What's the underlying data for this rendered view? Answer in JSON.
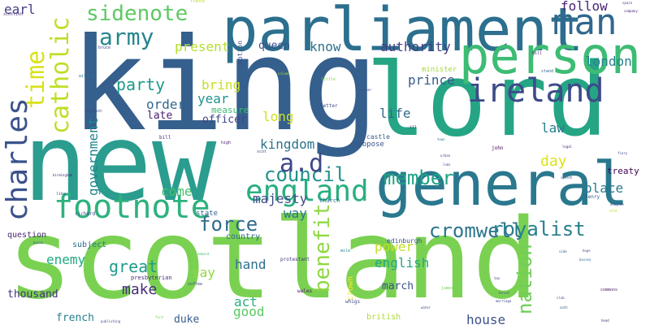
{
  "words": [
    {
      "text": "king",
      "color": "#355f8d"
    },
    {
      "text": "new",
      "color": "#2a9d8f"
    },
    {
      "text": "scotland",
      "color": "#7ad151"
    },
    {
      "text": "lord",
      "color": "#25a584"
    },
    {
      "text": "parliament",
      "color": "#2c6f8e"
    },
    {
      "text": "general",
      "color": "#2a788e"
    },
    {
      "text": "person",
      "color": "#3dbc74"
    },
    {
      "text": "england",
      "color": "#29af7f"
    },
    {
      "text": "charles",
      "color": "#3b528b"
    },
    {
      "text": "ireland",
      "color": "#3e4a89"
    },
    {
      "text": "footnote",
      "color": "#2db27d"
    },
    {
      "text": "man",
      "color": "#31688e"
    },
    {
      "text": "catholic",
      "color": "#bddf26"
    },
    {
      "text": "council",
      "color": "#21918c"
    },
    {
      "text": "member",
      "color": "#20a386"
    },
    {
      "text": "cromwell",
      "color": "#2b758e"
    },
    {
      "text": "sidenote",
      "color": "#5ec962"
    },
    {
      "text": "army",
      "color": "#25858e"
    },
    {
      "text": "time",
      "color": "#d8e219"
    },
    {
      "text": "benefit",
      "color": "#90d743"
    },
    {
      "text": "a.d",
      "color": "#3f4788"
    },
    {
      "text": "force",
      "color": "#2f6c8e"
    },
    {
      "text": "royalist",
      "color": "#277f8e"
    },
    {
      "text": "nation",
      "color": "#6ece58"
    },
    {
      "text": "party",
      "color": "#1f9a8a"
    },
    {
      "text": "great",
      "color": "#1e9b8a"
    },
    {
      "text": "make",
      "color": "#472d7b"
    },
    {
      "text": "government",
      "color": "#24868e"
    },
    {
      "text": "earl",
      "color": "#433e85"
    },
    {
      "text": "follow",
      "color": "#482475"
    },
    {
      "text": "london",
      "color": "#26828e"
    },
    {
      "text": "authority",
      "color": "#433d84"
    },
    {
      "text": "know",
      "color": "#2c728e"
    },
    {
      "text": "present",
      "color": "#b5de2b"
    },
    {
      "text": "queen",
      "color": "#3b518b"
    },
    {
      "text": "prince",
      "color": "#365c8d"
    },
    {
      "text": "year",
      "color": "#20928c"
    },
    {
      "text": "bring",
      "color": "#c8e020"
    },
    {
      "text": "order",
      "color": "#31688e"
    },
    {
      "text": "late",
      "color": "#481f70"
    },
    {
      "text": "officer",
      "color": "#404588"
    },
    {
      "text": "measure",
      "color": "#3dbc74"
    },
    {
      "text": "life",
      "color": "#2f6b8e"
    },
    {
      "text": "long",
      "color": "#d0e11c"
    },
    {
      "text": "law",
      "color": "#287d8e"
    },
    {
      "text": "day",
      "color": "#dde318"
    },
    {
      "text": "place",
      "color": "#297a8e"
    },
    {
      "text": "kingdom",
      "color": "#2c738e"
    },
    {
      "text": "majesty",
      "color": "#3f4889"
    },
    {
      "text": "way",
      "color": "#2a768e"
    },
    {
      "text": "come",
      "color": "#44bf70"
    },
    {
      "text": "power",
      "color": "#c2df23"
    },
    {
      "text": "english",
      "color": "#22a785"
    },
    {
      "text": "hand",
      "color": "#2d718e"
    },
    {
      "text": "say",
      "color": "#93d741"
    },
    {
      "text": "enemy",
      "color": "#22a884"
    },
    {
      "text": "march",
      "color": "#3a548c"
    },
    {
      "text": "act",
      "color": "#29af7f"
    },
    {
      "text": "good",
      "color": "#5ac864"
    },
    {
      "text": "house",
      "color": "#3b528b"
    },
    {
      "text": "thousand",
      "color": "#46327e"
    },
    {
      "text": "french",
      "color": "#26828e"
    },
    {
      "text": "duke",
      "color": "#365d8d"
    },
    {
      "text": "treaty",
      "color": "#440154"
    },
    {
      "text": "question",
      "color": "#482878"
    },
    {
      "text": "subject",
      "color": "#2c728e"
    },
    {
      "text": "country",
      "color": "#31688e"
    },
    {
      "text": "state",
      "color": "#33638d"
    },
    {
      "text": "minister",
      "color": "#a2da37"
    },
    {
      "text": "propose",
      "color": "#3a548c"
    },
    {
      "text": "castle",
      "color": "#34618d"
    },
    {
      "text": "edinburgh",
      "color": "#3b528b"
    },
    {
      "text": "british",
      "color": "#addc30"
    },
    {
      "text": "church",
      "color": "#31688e"
    },
    {
      "text": "crown",
      "color": "#fde725"
    },
    {
      "text": "protestant",
      "color": "#453781"
    },
    {
      "text": "presbyterian",
      "color": "#472c7a"
    },
    {
      "text": "richard",
      "color": "#3e4c8a"
    },
    {
      "text": "john",
      "color": "#440154"
    },
    {
      "text": "henry",
      "color": "#39568c"
    },
    {
      "text": "motion",
      "color": "#3b528b"
    },
    {
      "text": "letter",
      "color": "#3e4989"
    },
    {
      "text": "high",
      "color": "#482576"
    },
    {
      "text": "scot",
      "color": "#3b528b"
    },
    {
      "text": "bill",
      "color": "#482878"
    },
    {
      "text": "wales",
      "color": "#471063"
    },
    {
      "text": "whigs",
      "color": "#3e4989"
    },
    {
      "text": "coffee",
      "color": "#414487"
    },
    {
      "text": "commons",
      "color": "#48186a"
    },
    {
      "text": "scottish",
      "color": "#46307e"
    },
    {
      "text": "france",
      "color": "#b8de29"
    },
    {
      "text": "bruce",
      "color": "#3f4788"
    },
    {
      "text": "william",
      "color": "#2d708e"
    },
    {
      "text": "elizabeth",
      "color": "#3e4989"
    },
    {
      "text": "hill",
      "color": "#482878"
    },
    {
      "text": "stand",
      "color": "#33638d"
    },
    {
      "text": "little",
      "color": "#7fd34e"
    },
    {
      "text": "column",
      "color": "#a5db36"
    },
    {
      "text": "number",
      "color": "#3b528b"
    },
    {
      "text": "town",
      "color": "#2a788e"
    },
    {
      "text": "mile",
      "color": "#26828e"
    },
    {
      "text": "james",
      "color": "#7ad151"
    },
    {
      "text": "water",
      "color": "#3e4a89"
    },
    {
      "text": "marriage",
      "color": "#3e4989"
    },
    {
      "text": "forest",
      "color": "#3b528b"
    },
    {
      "text": "tax",
      "color": "#472d7b"
    },
    {
      "text": "birmingham",
      "color": "#482475"
    },
    {
      "text": "bishop",
      "color": "#3e4a89"
    },
    {
      "text": "like",
      "color": "#39568c"
    },
    {
      "text": "bacon",
      "color": "#38598c"
    },
    {
      "text": "spain",
      "color": "#453882"
    },
    {
      "text": "company",
      "color": "#482878"
    },
    {
      "text": "douglas",
      "color": "#404588"
    },
    {
      "text": "old",
      "color": "#c0df25"
    },
    {
      "text": "vide",
      "color": "#375a8c"
    },
    {
      "text": "club",
      "color": "#3f4889"
    },
    {
      "text": "oath",
      "color": "#33638d"
    },
    {
      "text": "hope",
      "color": "#3e4989"
    },
    {
      "text": "head",
      "color": "#472f7d"
    },
    {
      "text": "edward",
      "color": "#44bf70"
    },
    {
      "text": "bassey",
      "color": "#2d718e"
    },
    {
      "text": "ford",
      "color": "#77d153"
    },
    {
      "text": "publishing",
      "color": "#3e4a89"
    },
    {
      "text": "urban",
      "color": "#404688"
    },
    {
      "text": "legal",
      "color": "#482475"
    },
    {
      "text": "fiery",
      "color": "#3e4989"
    },
    {
      "text": "speech",
      "color": "#3b528b"
    },
    {
      "text": "lumi",
      "color": "#3e4a89"
    },
    {
      "text": "ill",
      "color": "#481b6d"
    }
  ]
}
